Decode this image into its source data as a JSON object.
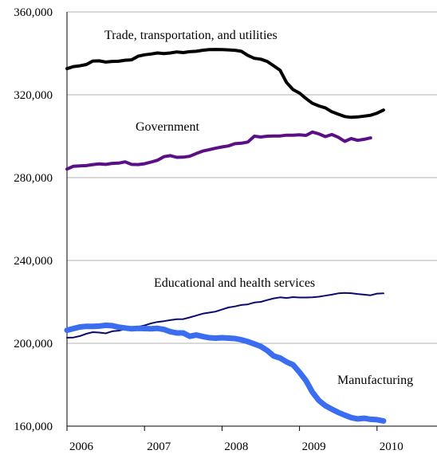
{
  "chart_data": {
    "type": "line",
    "title": "",
    "xlabel": "",
    "ylabel": "",
    "ylim": [
      160000,
      360000
    ],
    "yticks": [
      "160,000",
      "200,000",
      "240,000",
      "280,000",
      "320,000",
      "360,000"
    ],
    "year_ticks": [
      "2006",
      "2007",
      "2008",
      "2009",
      "2010"
    ],
    "grid": "horizontal",
    "series": [
      {
        "name": "Trade, transportation, and utilities",
        "color": "#000000",
        "values": [
          332600,
          333600,
          334000,
          334600,
          336300,
          336400,
          335800,
          336100,
          336200,
          336700,
          336900,
          338600,
          339300,
          339700,
          340200,
          339900,
          340200,
          340700,
          340400,
          340800,
          341000,
          341500,
          341800,
          341900,
          341800,
          341700,
          341500,
          341000,
          339000,
          337600,
          337200,
          336100,
          334000,
          331800,
          325900,
          322500,
          320800,
          318200,
          315900,
          314600,
          313700,
          311800,
          310600,
          309500,
          309100,
          309300,
          309700,
          310100,
          311100,
          312600
        ]
      },
      {
        "name": "Government",
        "color": "#5a0f86",
        "values": [
          284100,
          285500,
          285700,
          285800,
          286300,
          286600,
          286400,
          286900,
          287000,
          287600,
          286400,
          286300,
          286700,
          287500,
          288400,
          290100,
          290600,
          289800,
          289900,
          290300,
          291600,
          292800,
          293500,
          294200,
          294800,
          295300,
          296400,
          296600,
          297200,
          300000,
          299600,
          300000,
          300100,
          300100,
          300500,
          300500,
          300700,
          300400,
          302000,
          301100,
          299800,
          300800,
          299500,
          297500,
          298900,
          298000,
          298500,
          299200
        ]
      },
      {
        "name": "Educational and health services",
        "color": "#0a0a6e",
        "values": [
          202700,
          202800,
          203500,
          204600,
          205400,
          205200,
          204800,
          205800,
          206100,
          206800,
          207600,
          208000,
          208600,
          209600,
          210300,
          210700,
          211200,
          211600,
          211700,
          212500,
          213400,
          214300,
          214800,
          215300,
          216300,
          217300,
          217800,
          218500,
          218800,
          219700,
          220000,
          220900,
          221700,
          222200,
          221900,
          222300,
          222100,
          222100,
          222200,
          222500,
          223000,
          223500,
          224100,
          224300,
          224200,
          223800,
          223500,
          223200,
          224000,
          224100
        ]
      },
      {
        "name": "Manufacturing",
        "color": "#3a6df0",
        "values": [
          206300,
          207100,
          207900,
          208200,
          208200,
          208300,
          208700,
          208500,
          207800,
          207400,
          207000,
          207200,
          207100,
          207000,
          207200,
          206700,
          205600,
          205000,
          205000,
          203400,
          204000,
          203300,
          202700,
          202500,
          202700,
          202500,
          202300,
          201700,
          200800,
          199700,
          198500,
          196500,
          193900,
          192900,
          191000,
          189600,
          186000,
          182000,
          176400,
          172400,
          169900,
          168200,
          166600,
          165300,
          164100,
          163500,
          163800,
          163300,
          163100,
          162500
        ]
      }
    ],
    "annotations": [
      {
        "text": "Trade, transportation, and utilities"
      },
      {
        "text": "Government"
      },
      {
        "text": "Educational and health services"
      },
      {
        "text": "Manufacturing"
      }
    ]
  }
}
